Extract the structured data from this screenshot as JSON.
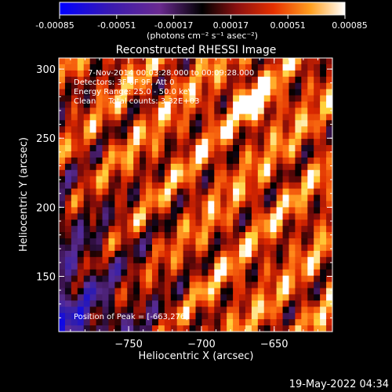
{
  "chart_data": {
    "type": "heatmap",
    "title": "Reconstructed RHESSI Image",
    "xlabel": "Heliocentric X (arcsec)",
    "ylabel": "Heliocentric Y (arcsec)",
    "xlim": [
      -798,
      -610
    ],
    "ylim": [
      110,
      308
    ],
    "x_ticks": [
      -750,
      -700,
      -650
    ],
    "y_ticks": [
      150,
      200,
      250,
      300
    ],
    "colorbar": {
      "ticks": [
        "-0.00085",
        "-0.00051",
        "-0.00017",
        "0.00017",
        "0.00051",
        "0.00085"
      ],
      "units_label": "(photons cm⁻² s⁻¹ asec⁻²)",
      "range": [
        -0.00085,
        0.00085
      ]
    },
    "annotations": [
      "7-Nov-2014 00:03:28.000 to 00:09:28.000",
      "Detectors: 3F 6F 9F, Att 0",
      "Energy Range: 25.0 - 50.0 keV",
      "Clean     Total counts: 3.32E+03"
    ],
    "peak_label": "Position of Peak = [-663,276]",
    "peak": [
      -663,
      276
    ],
    "grid": false
  },
  "footer": {
    "timestamp": "19-May-2022 04:34"
  },
  "colors": {
    "background": "#000000",
    "text": "#ffffff"
  }
}
